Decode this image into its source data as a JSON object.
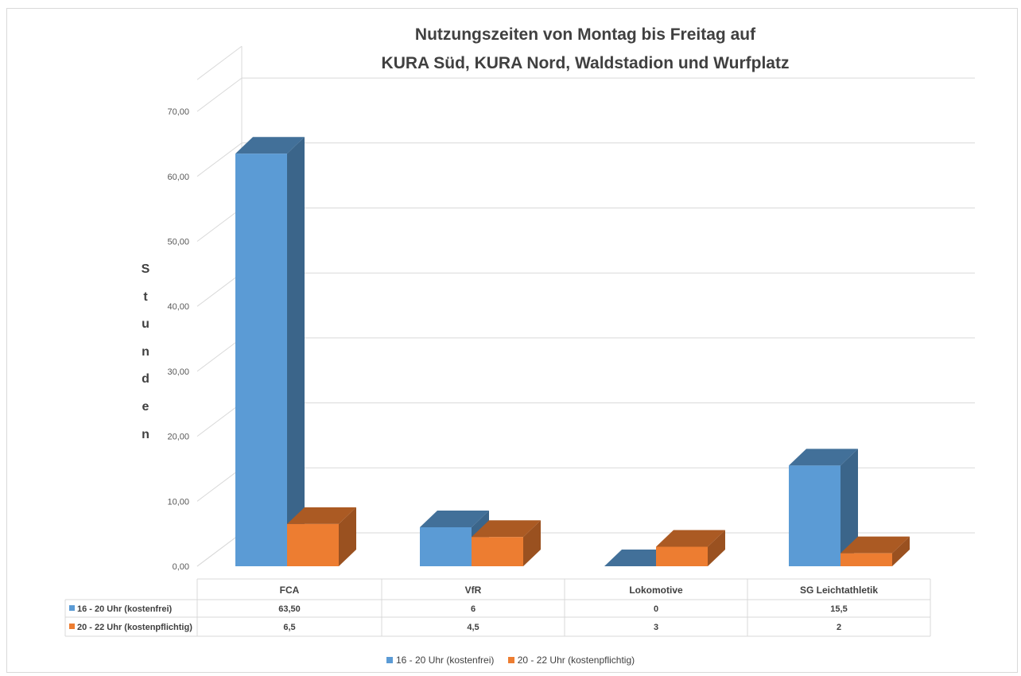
{
  "chart_data": {
    "type": "bar",
    "title_lines": [
      "Nutzungszeiten von Montag bis Freitag auf",
      "KURA Süd, KURA Nord, Waldstadion und Wurfplatz"
    ],
    "ylabel": "Stunden",
    "ylim": [
      0,
      70
    ],
    "yticks": [
      "0,00",
      "10,00",
      "20,00",
      "30,00",
      "40,00",
      "50,00",
      "60,00",
      "70,00"
    ],
    "categories": [
      "FCA",
      "VfR",
      "Lokomotive",
      "SG Leichtathletik"
    ],
    "series": [
      {
        "name": "16 - 20 Uhr (kostenfrei)",
        "color": "#5b9bd5",
        "values": [
          63.5,
          6,
          0,
          15.5
        ],
        "table_labels": [
          "63,50",
          "6",
          "0",
          "15,5"
        ]
      },
      {
        "name": "20 - 22 Uhr (kostenpflichtig)",
        "color": "#ed7d31",
        "values": [
          6.5,
          4.5,
          3,
          2
        ],
        "table_labels": [
          "6,5",
          "4,5",
          "3",
          "2"
        ]
      }
    ],
    "grid": true,
    "legend": "bottom",
    "data_table": true,
    "style": "3d-column"
  }
}
